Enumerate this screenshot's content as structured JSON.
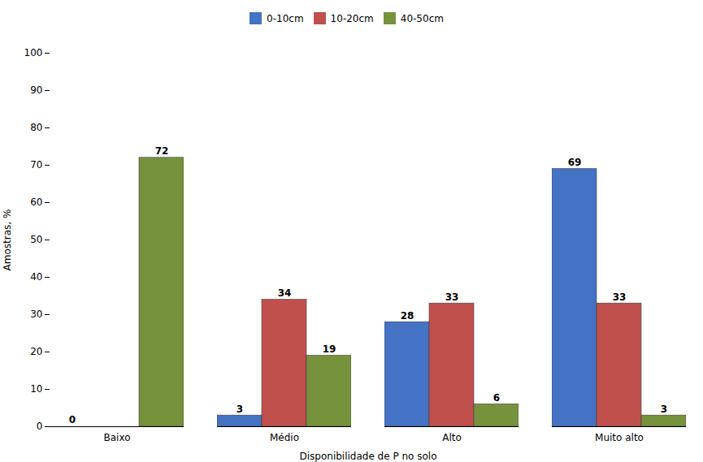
{
  "chart_data": {
    "type": "bar",
    "categories": [
      "Baixo",
      "Médio",
      "Alto",
      "Muito alto"
    ],
    "series": [
      {
        "name": "0-10cm",
        "color": "#4472C4",
        "values": [
          0,
          3,
          28,
          69
        ]
      },
      {
        "name": "10-20cm",
        "color": "#C0504D",
        "values": [
          0,
          34,
          33,
          33
        ],
        "value_labels": [
          null,
          "34",
          "33",
          "33"
        ]
      },
      {
        "name": "40-50cm",
        "color": "#76923C",
        "values": [
          72,
          19,
          6,
          3
        ]
      }
    ],
    "xlabel": "Disponibilidade de P no solo",
    "ylabel": "Amostras, %",
    "ylim": [
      0,
      100
    ],
    "yticks": [
      0,
      10,
      20,
      30,
      40,
      50,
      60,
      70,
      80,
      90,
      100
    ],
    "grid": false,
    "legend": "top",
    "data_labels": true
  }
}
